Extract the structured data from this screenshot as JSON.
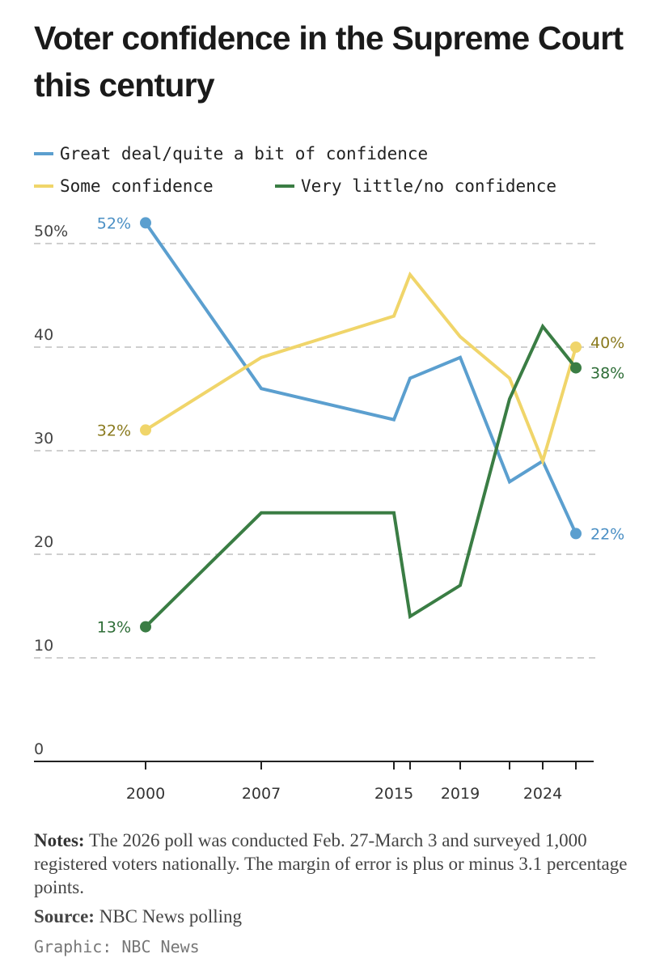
{
  "header": {
    "title": "Voter confidence in the Supreme Court this century"
  },
  "chart_data": {
    "type": "line",
    "title": "Voter confidence in the Supreme Court this century",
    "xlabel": "",
    "ylabel": "",
    "x_tick_labels": [
      "2000",
      "2007",
      "2015",
      "2019",
      "2024"
    ],
    "x_tick_years": [
      2000,
      2007,
      2015,
      2016,
      2019,
      2022,
      2024,
      2026
    ],
    "y_ticks": [
      0,
      10,
      20,
      30,
      40,
      50
    ],
    "y_tick_labels": [
      "0",
      "10",
      "20",
      "30",
      "40",
      "50%"
    ],
    "ylim": [
      0,
      52
    ],
    "grid": true,
    "legend_position": "top-left",
    "series": [
      {
        "name": "Great deal/quite a bit of confidence",
        "color": "#5b9fcf",
        "label_color": "#4a8fc4",
        "points": [
          [
            2000,
            52
          ],
          [
            2007,
            36
          ],
          [
            2015,
            33
          ],
          [
            2016,
            37
          ],
          [
            2019,
            39
          ],
          [
            2022,
            27
          ],
          [
            2024,
            29
          ],
          [
            2026,
            22
          ]
        ],
        "start_label": "52%",
        "end_label": "22%"
      },
      {
        "name": "Some confidence",
        "color": "#f0d56a",
        "label_color": "#8a7a1e",
        "points": [
          [
            2000,
            32
          ],
          [
            2007,
            39
          ],
          [
            2015,
            43
          ],
          [
            2016,
            47
          ],
          [
            2019,
            41
          ],
          [
            2022,
            37
          ],
          [
            2024,
            29
          ],
          [
            2026,
            40
          ]
        ],
        "start_label": "32%",
        "end_label": "40%"
      },
      {
        "name": "Very little/no confidence",
        "color": "#3a7d44",
        "label_color": "#2f6e38",
        "points": [
          [
            2000,
            13
          ],
          [
            2007,
            24
          ],
          [
            2015,
            24
          ],
          [
            2016,
            14
          ],
          [
            2019,
            17
          ],
          [
            2022,
            35
          ],
          [
            2024,
            42
          ],
          [
            2026,
            38
          ]
        ],
        "start_label": "13%",
        "end_label": "38%"
      }
    ]
  },
  "legend": {
    "great_deal": "Great deal/quite a bit of confidence",
    "some": "Some confidence",
    "very_little": "Very little/no confidence"
  },
  "notes": {
    "label": "Notes:",
    "text": "The 2026 poll was conducted Feb. 27-March 3 and surveyed 1,000 registered voters nationally. The margin of error is plus or minus 3.1 percentage points."
  },
  "source": {
    "label": "Source:",
    "text": "NBC News polling"
  },
  "credit": "Graphic: NBC News"
}
